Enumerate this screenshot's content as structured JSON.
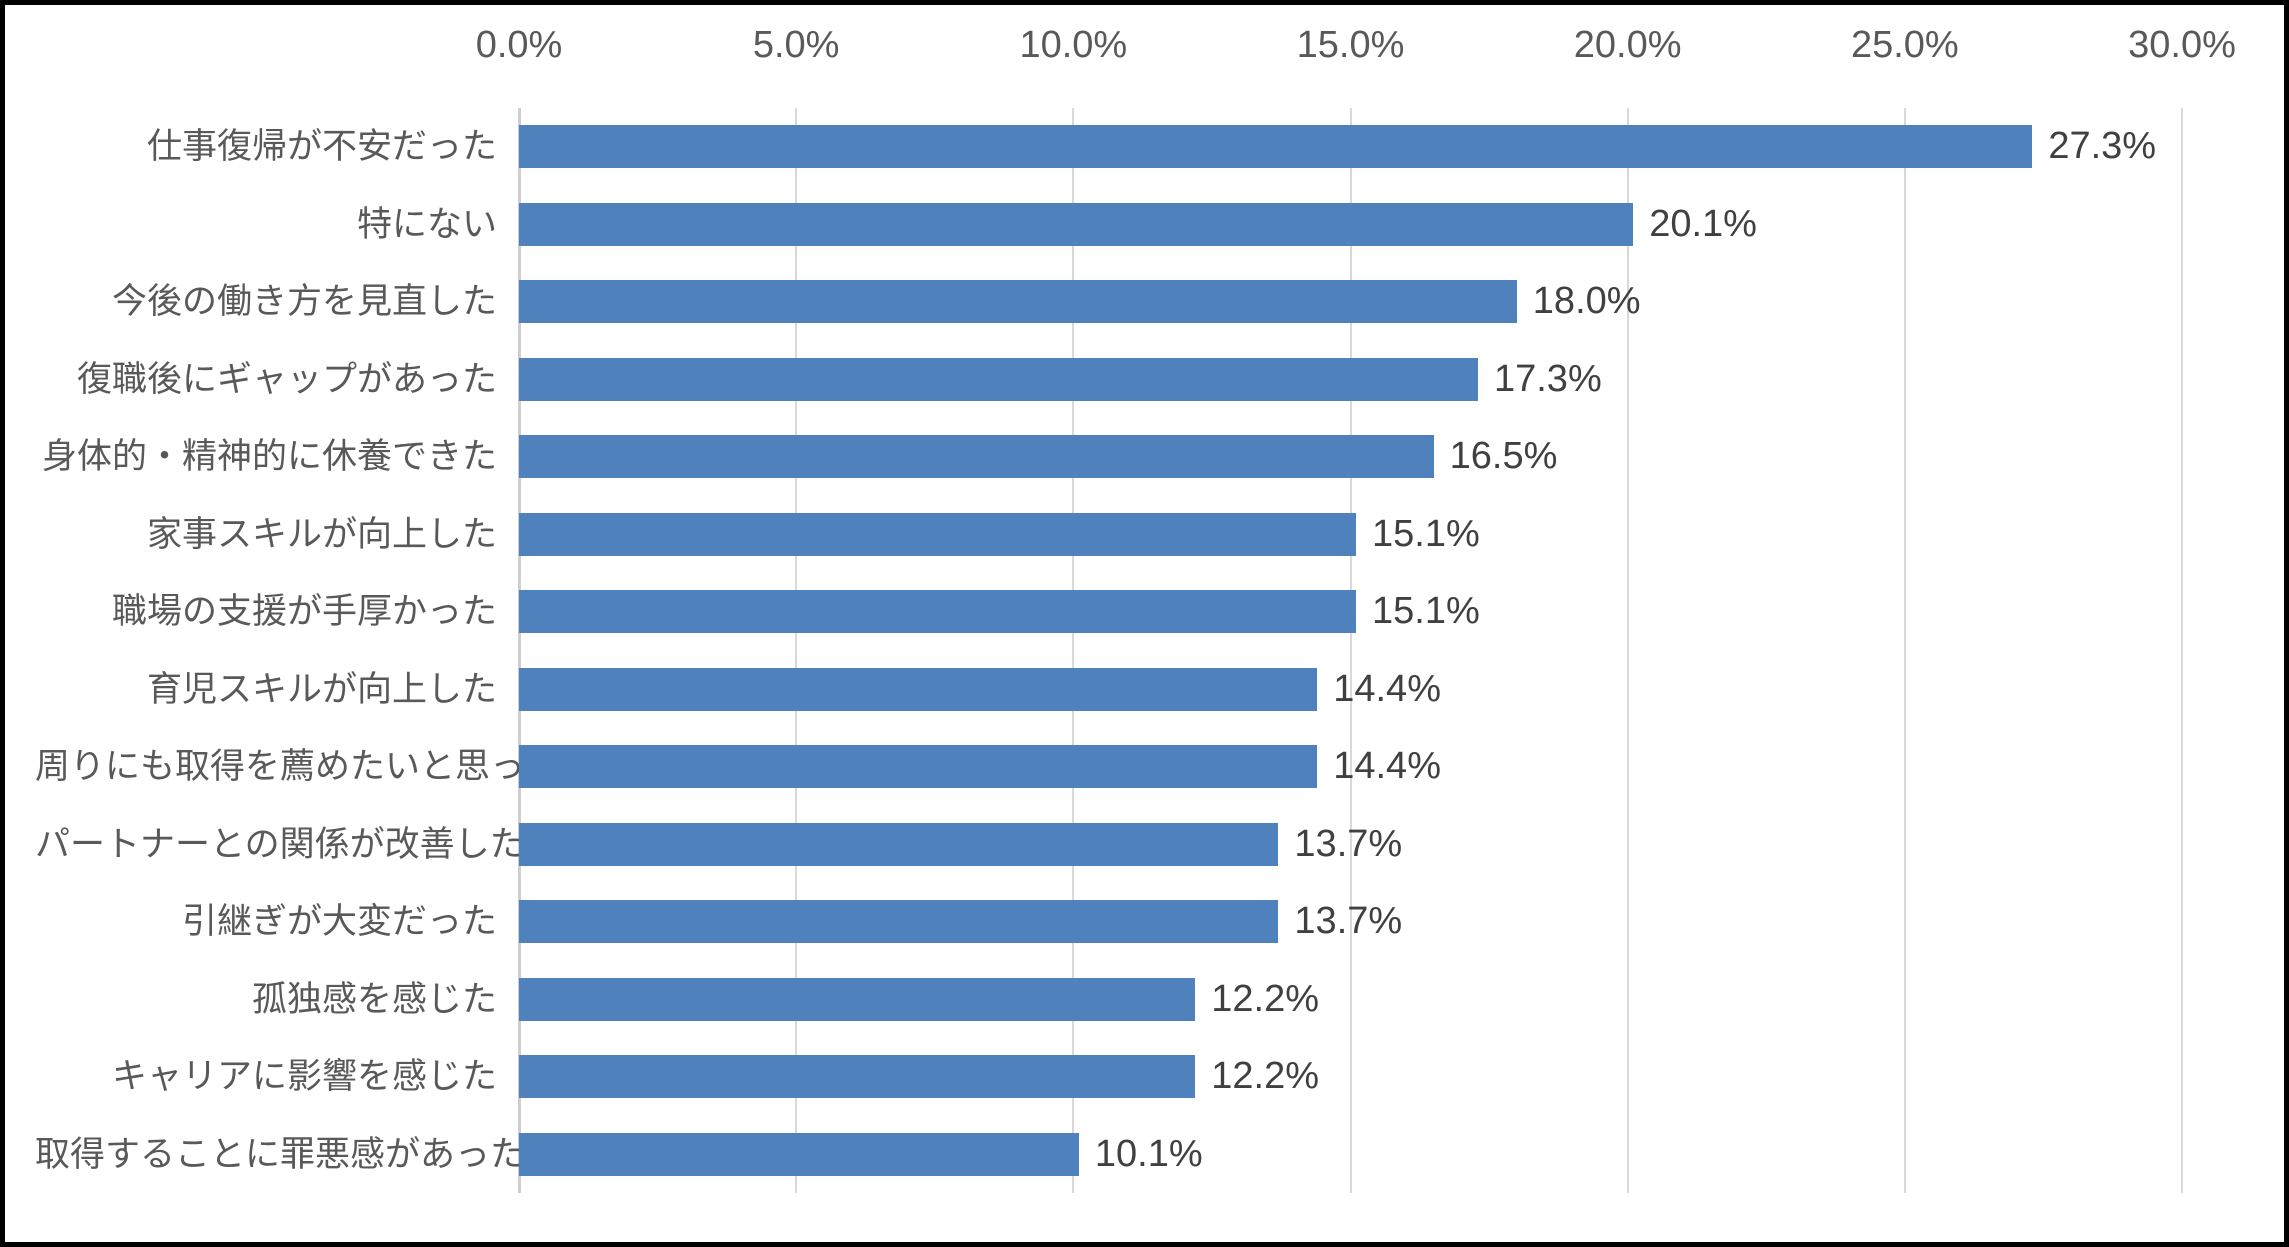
{
  "chart_data": {
    "type": "bar",
    "orientation": "horizontal",
    "title": "",
    "categories": [
      "仕事復帰が不安だった",
      "特にない",
      "今後の働き方を見直した",
      "復職後にギャップがあった",
      "身体的・精神的に休養できた",
      "家事スキルが向上した",
      "職場の支援が手厚かった",
      "育児スキルが向上した",
      "周りにも取得を薦めたいと思った",
      "パートナーとの関係が改善した",
      "引継ぎが大変だった",
      "孤独感を感じた",
      "キャリアに影響を感じた",
      "取得することに罪悪感があった"
    ],
    "values": [
      27.3,
      20.1,
      18.0,
      17.3,
      16.5,
      15.1,
      15.1,
      14.4,
      14.4,
      13.7,
      13.7,
      12.2,
      12.2,
      10.1
    ],
    "value_labels": [
      "27.3%",
      "20.1%",
      "18.0%",
      "17.3%",
      "16.5%",
      "15.1%",
      "15.1%",
      "14.4%",
      "14.4%",
      "13.7%",
      "13.7%",
      "12.2%",
      "12.2%",
      "10.1%"
    ],
    "x_axis": {
      "position": "top",
      "min": 0,
      "max": 30,
      "tick_values": [
        0,
        5,
        10,
        15,
        20,
        25,
        30
      ],
      "tick_labels": [
        "0.0%",
        "5.0%",
        "10.0%",
        "15.0%",
        "20.0%",
        "25.0%",
        "30.0%"
      ]
    },
    "grid": true,
    "legend": false,
    "colors": {
      "bar": "#4f81bd",
      "gridline": "#d9d9d9",
      "zero_axis_line": "#d0cece",
      "tick_text": "#595959",
      "category_text": "#595959",
      "value_text": "#404040",
      "frame_border": "#000000",
      "background": "#ffffff"
    }
  }
}
